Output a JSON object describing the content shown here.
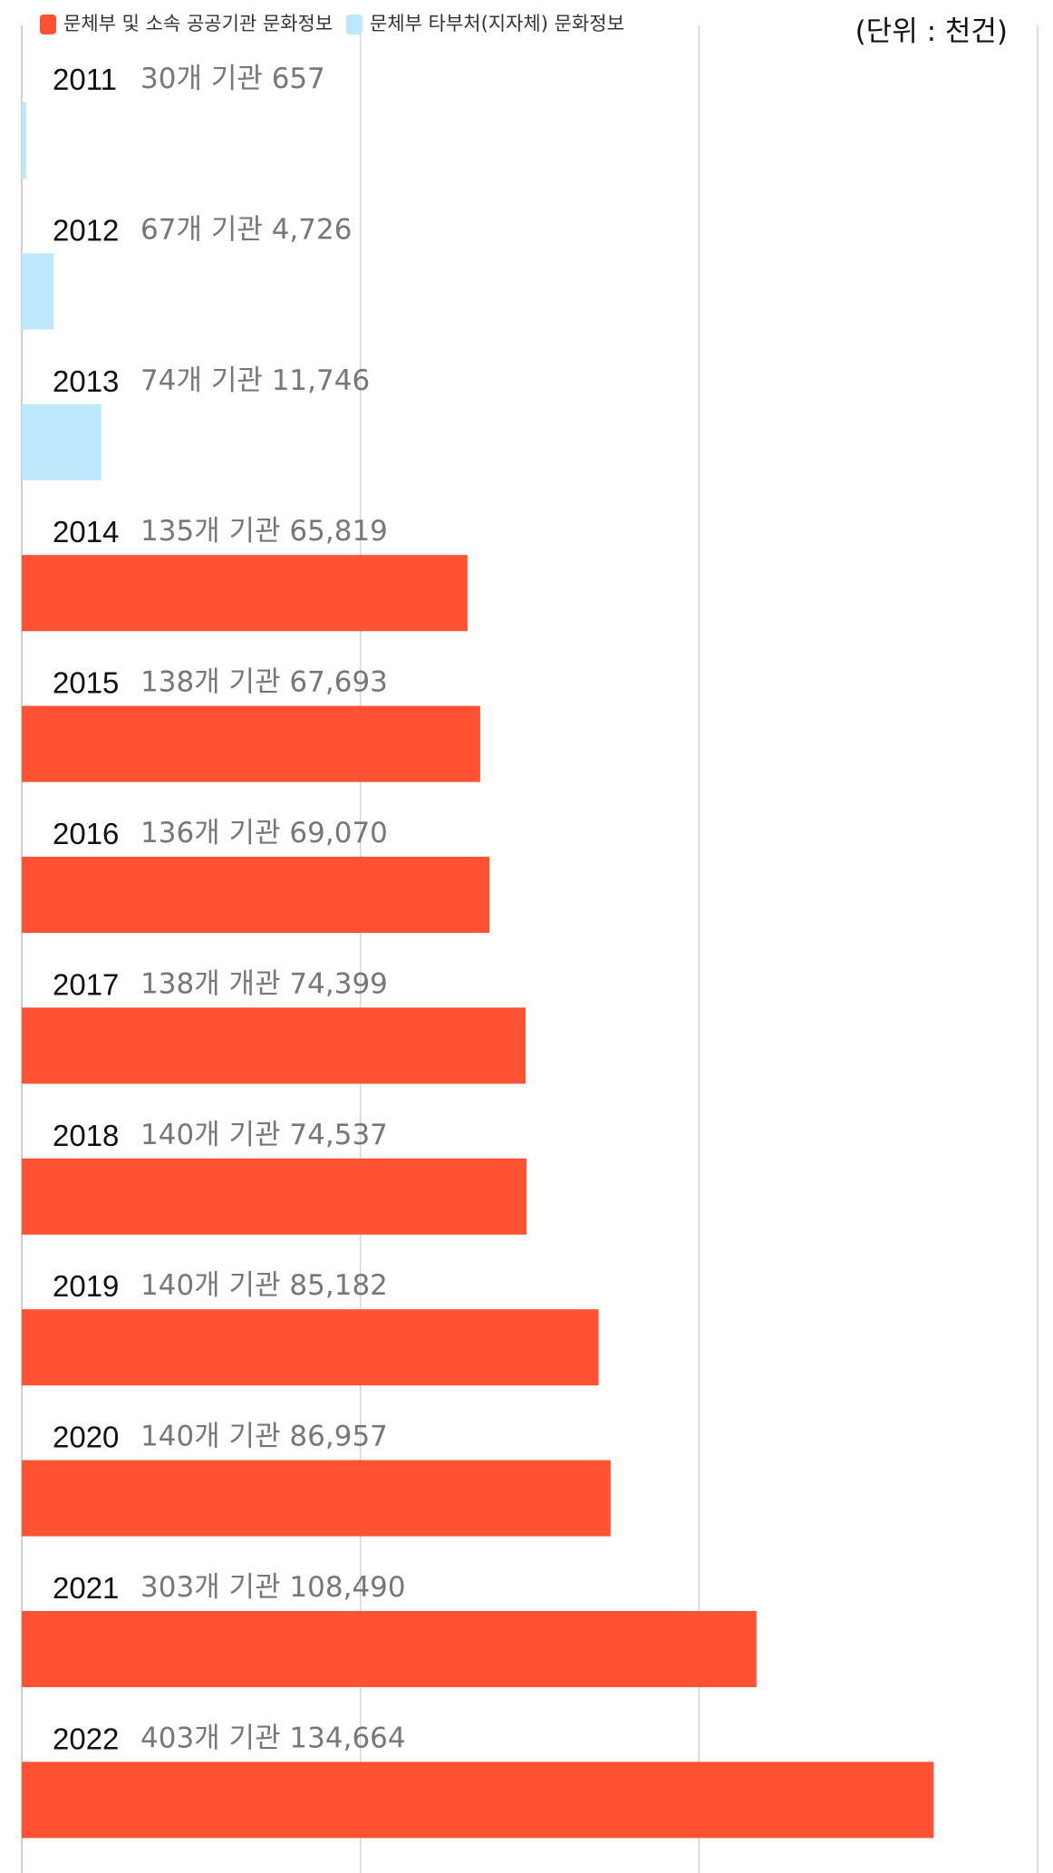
{
  "chart_data": {
    "type": "bar",
    "orientation": "horizontal",
    "legend": [
      {
        "name": "문체부 및 소속 공공기관 문화정보",
        "color": "#fe5232"
      },
      {
        "name": "문체부 타부처(지자체) 문화정보",
        "color": "#bde8fb"
      }
    ],
    "legend_position": "top-left",
    "unit": "(단위 : 천건)",
    "xlim": [
      0,
      150000
    ],
    "grid": true,
    "categories": [
      "2011",
      "2012",
      "2013",
      "2014",
      "2015",
      "2016",
      "2017",
      "2018",
      "2019",
      "2020",
      "2021",
      "2022"
    ],
    "data_labels": [
      "30개 기관 657",
      "67개 기관 4,726",
      "74개 기관 11,746",
      "135개 기관 65,819",
      "138개 기관 67,693",
      "136개 기관 69,070",
      "138개 개관 74,399",
      "140개 기관 74,537",
      "140개 기관 85,182",
      "140개 기관 86,957",
      "303개 기관 108,490",
      "403개 기관 134,664"
    ],
    "values": [
      657,
      4726,
      11746,
      65819,
      67693,
      69070,
      74399,
      74537,
      85182,
      86957,
      108490,
      134664
    ],
    "series_index": [
      1,
      1,
      1,
      0,
      0,
      0,
      0,
      0,
      0,
      0,
      0,
      0
    ]
  }
}
